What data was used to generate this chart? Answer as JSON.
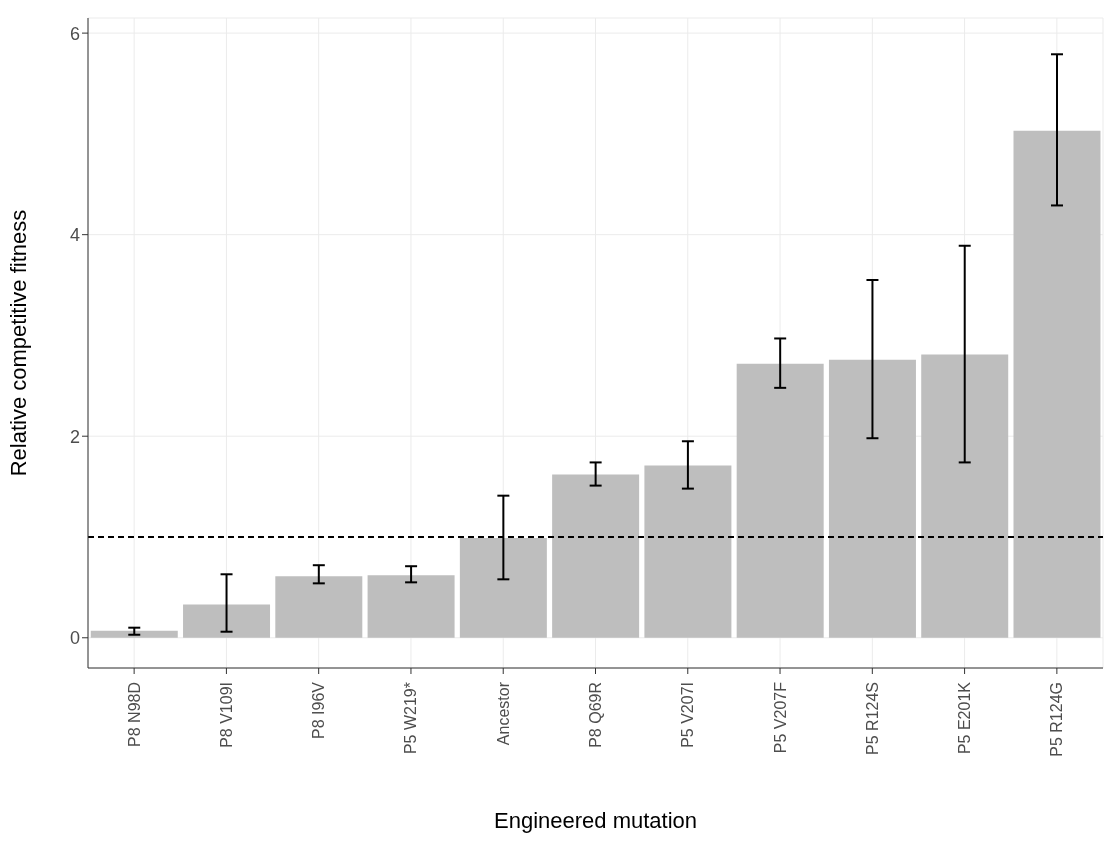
{
  "chart_data": {
    "type": "bar",
    "xlabel": "Engineered mutation",
    "ylabel": "Relative competitive fitness",
    "categories": [
      "P8 N98D",
      "P8 V109I",
      "P8 I96V",
      "P5 W219*",
      "Ancestor",
      "P8 Q69R",
      "P5 V207I",
      "P5 V207F",
      "P5 R124S",
      "P5 E201K",
      "P5 R124G"
    ],
    "values": [
      0.07,
      0.33,
      0.61,
      0.62,
      0.99,
      1.62,
      1.71,
      2.72,
      2.76,
      2.81,
      5.03
    ],
    "errors": [
      [
        0.03,
        0.1
      ],
      [
        0.06,
        0.63
      ],
      [
        0.54,
        0.72
      ],
      [
        0.55,
        0.71
      ],
      [
        0.58,
        1.41
      ],
      [
        1.51,
        1.74
      ],
      [
        1.48,
        1.95
      ],
      [
        2.48,
        2.97
      ],
      [
        1.98,
        3.55
      ],
      [
        1.74,
        3.89
      ],
      [
        4.29,
        5.79
      ]
    ],
    "color": "#bebebe",
    "ylim": [
      -0.3,
      6.15
    ],
    "yticks": [
      0,
      2,
      4,
      6
    ],
    "grid": true,
    "ref_lines": [
      {
        "axis": "y",
        "value": 1,
        "line_style": "dashed",
        "color": "#000000"
      }
    ]
  }
}
